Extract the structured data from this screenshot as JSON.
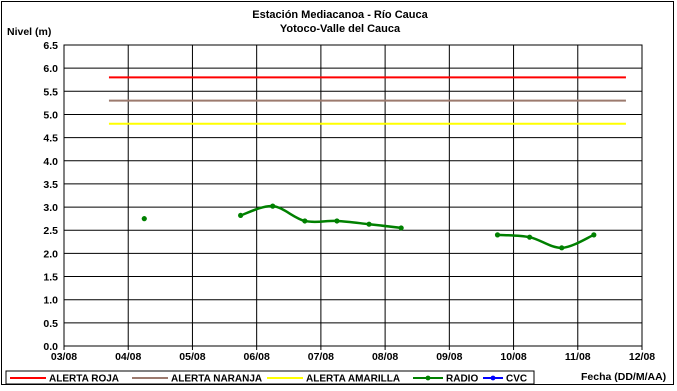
{
  "chart_data": {
    "type": "line",
    "title": "Estación Mediacanoa - Río Cauca",
    "subtitle": "Yotoco-Valle del Cauca",
    "ylabel": "Nivel (m)",
    "xlabel": "Fecha (DD/M/AA)",
    "ylim": [
      0,
      6.5
    ],
    "xlim_days": [
      0,
      9
    ],
    "grid": true,
    "legend_position": "bottom",
    "y_ticks": [
      "0.0",
      "0.5",
      "1.0",
      "1.5",
      "2.0",
      "2.5",
      "3.0",
      "3.5",
      "4.0",
      "4.5",
      "5.0",
      "5.5",
      "6.0",
      "6.5"
    ],
    "x_ticks": [
      "03/08",
      "04/08",
      "05/08",
      "06/08",
      "07/08",
      "08/08",
      "09/08",
      "10/08",
      "11/08",
      "12/08"
    ],
    "thresholds": [
      {
        "name": "ALERTA ROJA",
        "value": 5.8,
        "color": "#ff0000",
        "x_range_days": [
          0.7,
          8.75
        ]
      },
      {
        "name": "ALERTA NARANJA",
        "value": 5.3,
        "color": "#9c7a6e",
        "x_range_days": [
          0.7,
          8.75
        ]
      },
      {
        "name": "ALERTA AMARILLA",
        "value": 4.8,
        "color": "#ffff00",
        "x_range_days": [
          0.7,
          8.75
        ]
      }
    ],
    "series": [
      {
        "name": "RADIO",
        "color": "#008000",
        "segments": [
          [
            {
              "day": 1.25,
              "y": 2.75
            }
          ],
          [
            {
              "day": 2.75,
              "y": 2.82
            },
            {
              "day": 3.25,
              "y": 3.02
            },
            {
              "day": 3.75,
              "y": 2.7
            },
            {
              "day": 4.25,
              "y": 2.7
            },
            {
              "day": 4.75,
              "y": 2.63
            },
            {
              "day": 5.25,
              "y": 2.55
            }
          ],
          [
            {
              "day": 6.75,
              "y": 2.4
            },
            {
              "day": 7.25,
              "y": 2.35
            },
            {
              "day": 7.75,
              "y": 2.12
            },
            {
              "day": 8.25,
              "y": 2.4
            }
          ]
        ]
      },
      {
        "name": "CVC",
        "color": "#0000ff",
        "segments": []
      }
    ]
  }
}
